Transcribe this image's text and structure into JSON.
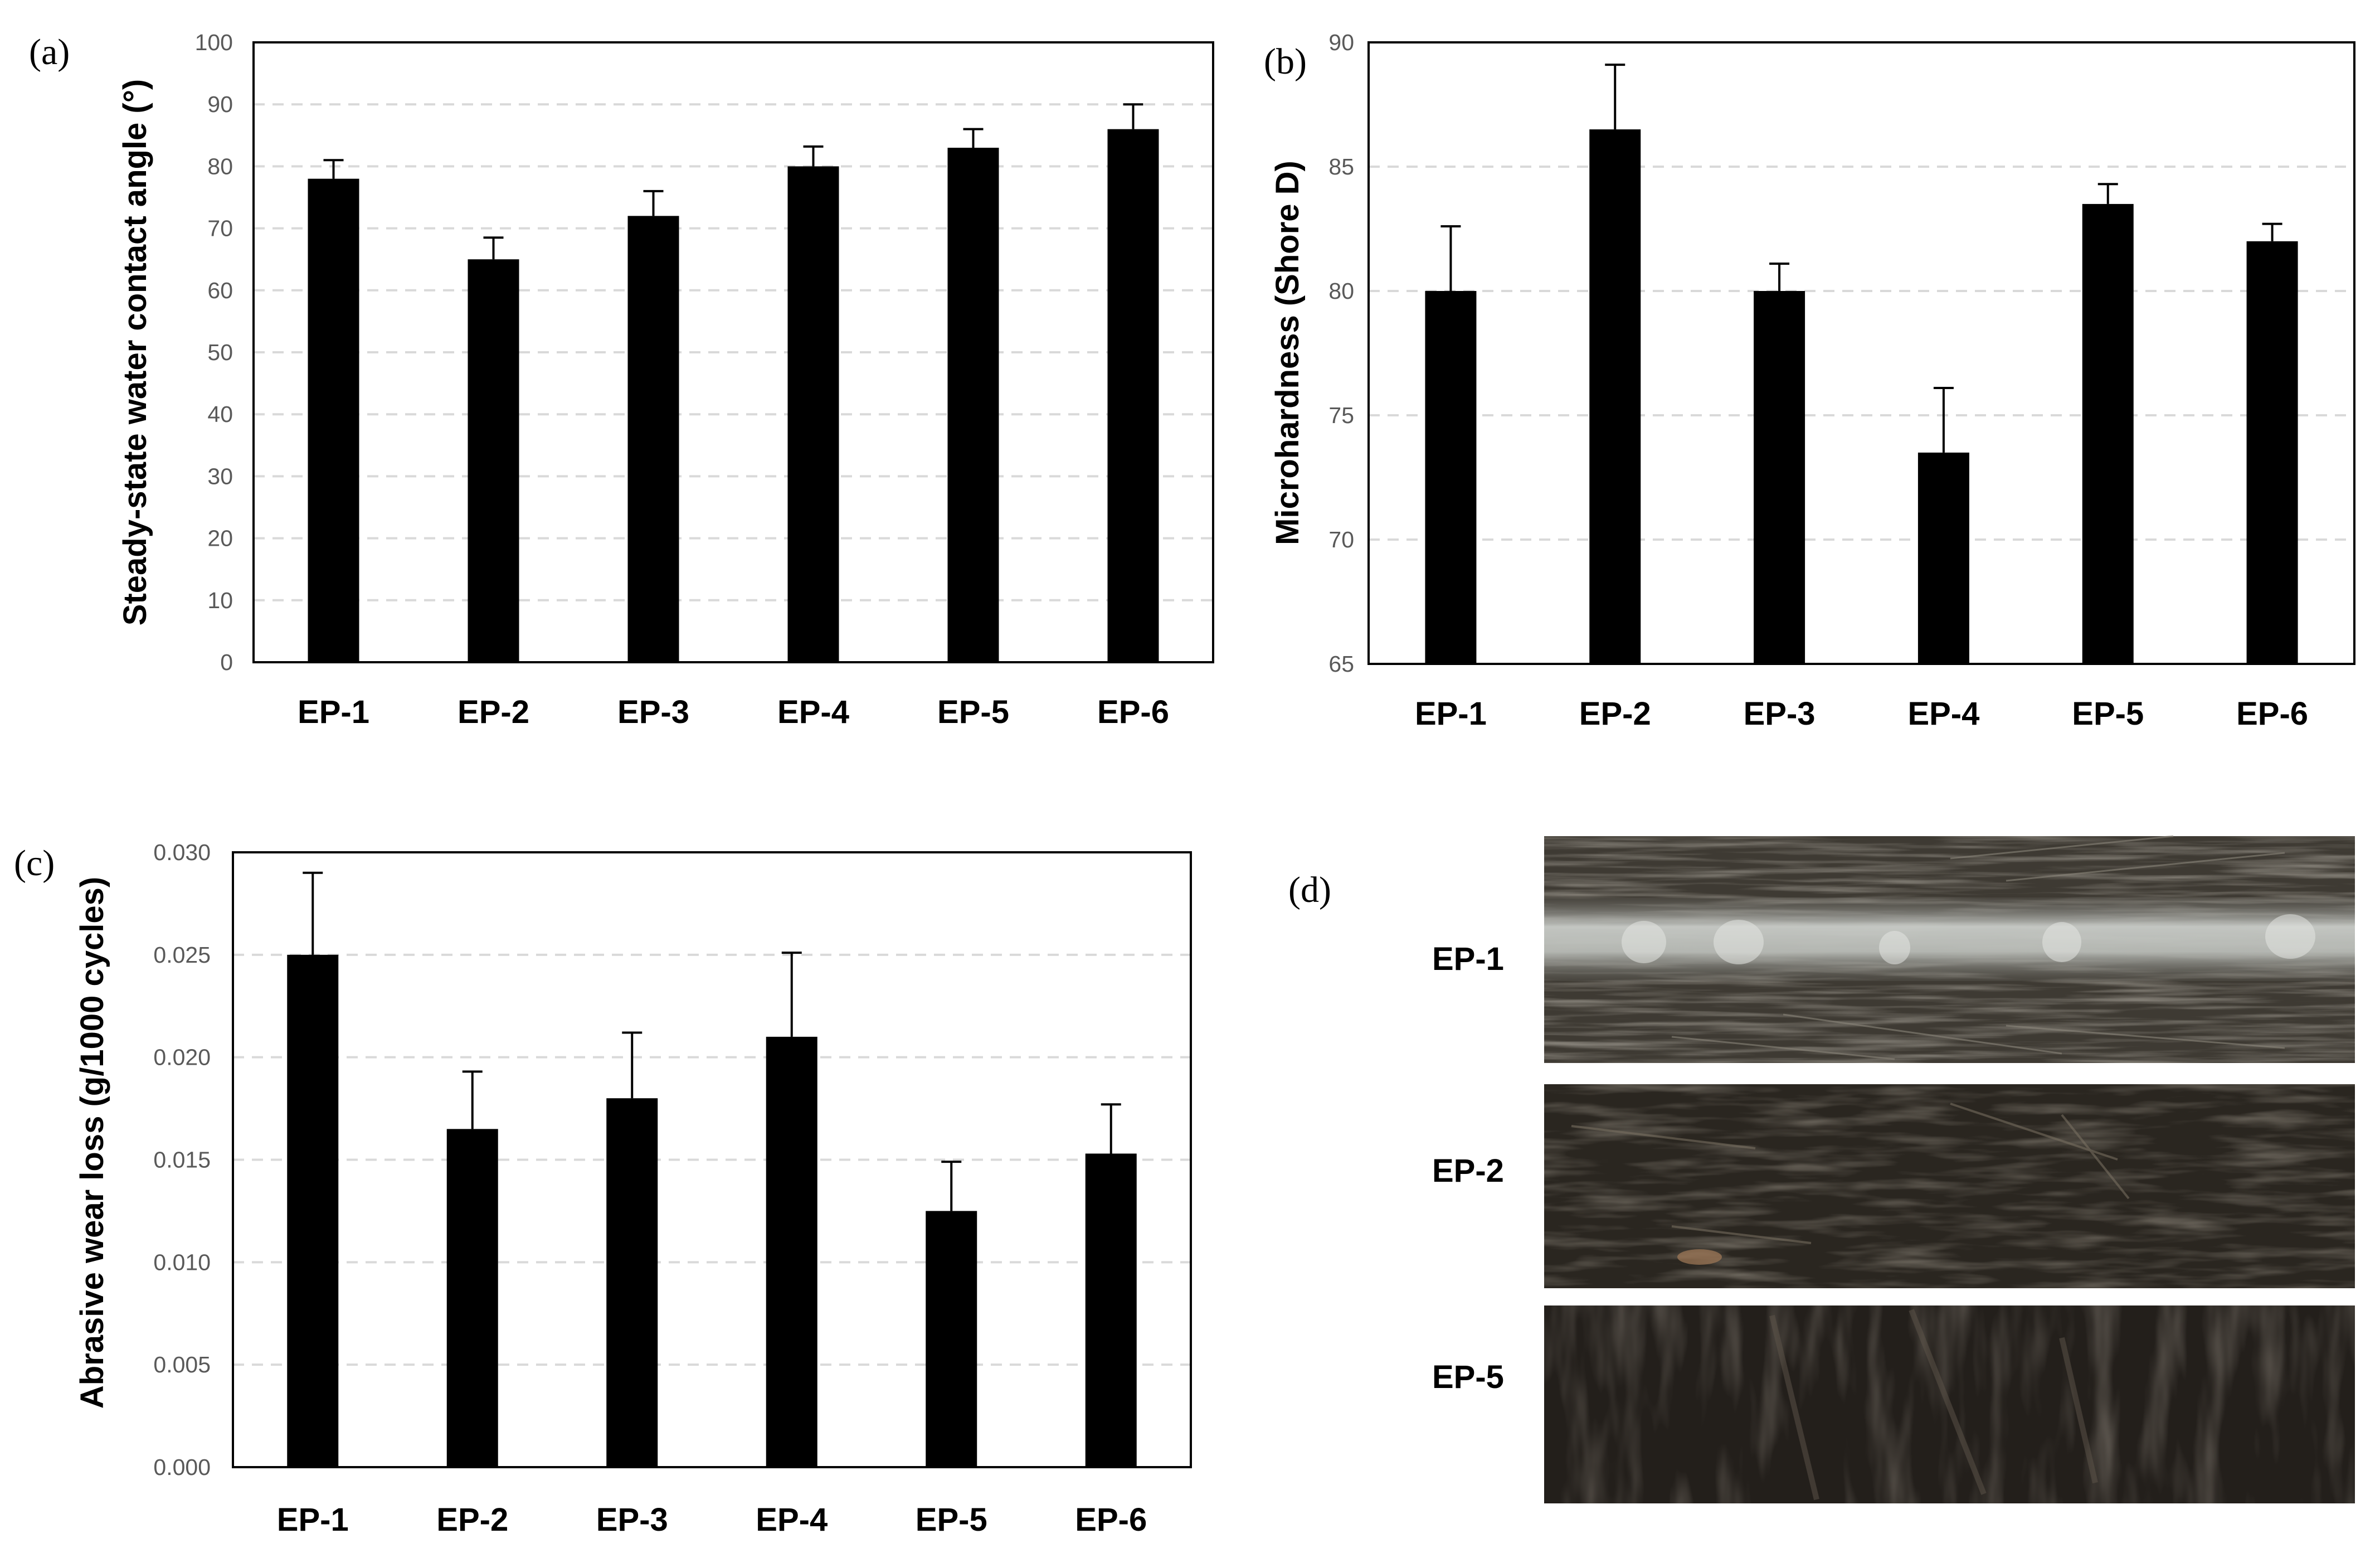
{
  "chart_data": [
    {
      "panel": "(a)",
      "type": "bar",
      "ylabel": "Steady-state water contact angle (°)",
      "categories": [
        "EP-1",
        "EP-2",
        "EP-3",
        "EP-4",
        "EP-5",
        "EP-6"
      ],
      "values": [
        78,
        65,
        72,
        80,
        83,
        86
      ],
      "errors": [
        3,
        3.5,
        4,
        3.2,
        3,
        4
      ],
      "ylim": [
        0,
        100
      ],
      "yticks": [
        0,
        10,
        20,
        30,
        40,
        50,
        60,
        70,
        80,
        90,
        100
      ],
      "ytick_labels": [
        "0",
        "10",
        "20",
        "30",
        "40",
        "50",
        "60",
        "70",
        "80",
        "90",
        "100"
      ],
      "grid": true
    },
    {
      "panel": "(b)",
      "type": "bar",
      "ylabel": "Microhardness (Shore D)",
      "categories": [
        "EP-1",
        "EP-2",
        "EP-3",
        "EP-4",
        "EP-5",
        "EP-6"
      ],
      "values": [
        80,
        86.5,
        80,
        73.5,
        83.5,
        82
      ],
      "errors": [
        2.6,
        2.6,
        1.1,
        2.6,
        0.8,
        0.7
      ],
      "ylim": [
        65,
        90
      ],
      "yticks": [
        65,
        70,
        75,
        80,
        85,
        90
      ],
      "ytick_labels": [
        "65",
        "70",
        "75",
        "80",
        "85",
        "90"
      ],
      "grid": true
    },
    {
      "panel": "(c)",
      "type": "bar",
      "ylabel": "Abrasive wear loss (g/1000 cycles)",
      "categories": [
        "EP-1",
        "EP-2",
        "EP-3",
        "EP-4",
        "EP-5",
        "EP-6"
      ],
      "values": [
        0.025,
        0.0165,
        0.018,
        0.021,
        0.0125,
        0.0153
      ],
      "errors": [
        0.004,
        0.0028,
        0.0032,
        0.0041,
        0.0024,
        0.0024
      ],
      "ylim": [
        0,
        0.03
      ],
      "yticks": [
        0,
        0.005,
        0.01,
        0.015,
        0.02,
        0.025,
        0.03
      ],
      "ytick_labels": [
        "0.000",
        "0.005",
        "0.010",
        "0.015",
        "0.020",
        "0.025",
        "0.030"
      ],
      "grid": true
    }
  ],
  "panel_d": {
    "label": "(d)",
    "photos": [
      {
        "label": "EP-1",
        "base": "#3e3a33"
      },
      {
        "label": "EP-2",
        "base": "#2a2620"
      },
      {
        "label": "EP-5",
        "base": "#231f1b"
      }
    ]
  }
}
